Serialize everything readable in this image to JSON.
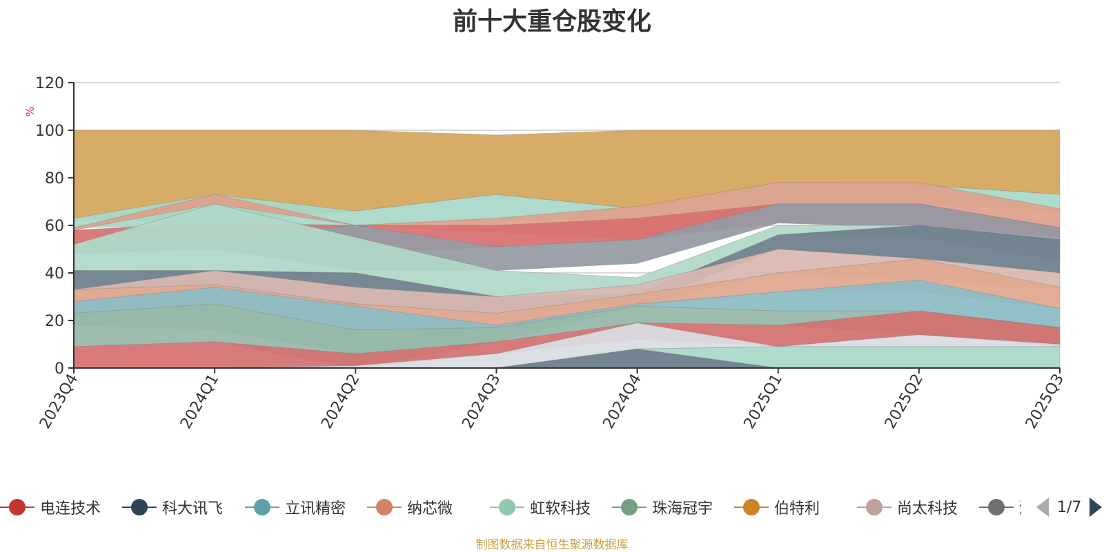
{
  "title": "前十大重仓股变化",
  "footer": "制图数据来自恒生聚源数据库",
  "chart_data": {
    "type": "area",
    "ylabel": "%",
    "ylim": [
      0,
      120
    ],
    "yticks": [
      0,
      20,
      40,
      60,
      80,
      100,
      120
    ],
    "categories": [
      "2023Q4",
      "2024Q1",
      "2024Q2",
      "2024Q3",
      "2024Q4",
      "2025Q1",
      "2025Q2",
      "2025Q3"
    ],
    "grid": true,
    "legend_position": "bottom",
    "bands": [
      {
        "color": "#d4a65a",
        "lower": [
          63,
          61,
          66,
          73,
          67,
          78,
          77,
          73
        ],
        "upper": [
          100,
          100,
          100,
          98,
          100,
          100,
          100,
          100
        ]
      },
      {
        "color": "#a8d8c8",
        "lower": [
          59,
          60,
          60,
          62,
          63,
          69,
          69,
          66
        ],
        "upper": [
          63,
          73,
          66,
          73,
          67,
          78,
          77,
          73
        ]
      },
      {
        "color": "#e0a08a",
        "lower": [
          58,
          69,
          60,
          57,
          54,
          69,
          69,
          59
        ],
        "upper": [
          59,
          73,
          60,
          63,
          68,
          78,
          78,
          67
        ]
      },
      {
        "color": "#d87070",
        "lower": [
          52,
          55,
          48,
          51,
          54,
          61,
          60,
          55
        ],
        "upper": [
          58,
          61,
          60,
          60,
          63,
          69,
          69,
          59
        ]
      },
      {
        "color": "#969aa4",
        "lower": [
          48,
          50,
          41,
          41,
          44,
          61,
          59,
          53
        ],
        "upper": [
          52,
          55,
          60,
          51,
          54,
          69,
          69,
          59
        ]
      },
      {
        "color": "#b0d8c8",
        "lower": [
          41,
          40,
          40,
          30,
          31,
          56,
          55,
          45
        ],
        "upper": [
          52,
          69,
          55,
          41,
          38,
          60,
          60,
          53
        ]
      },
      {
        "color": "#6e7e8c",
        "lower": [
          33,
          35,
          26,
          23,
          27,
          50,
          46,
          40
        ],
        "upper": [
          41,
          41,
          40,
          30,
          31,
          56,
          60,
          54
        ]
      },
      {
        "color": "#d8b8b0",
        "lower": [
          28,
          34,
          27,
          18,
          27,
          40,
          37,
          33
        ],
        "upper": [
          33,
          41,
          34,
          30,
          35,
          50,
          46,
          40
        ]
      },
      {
        "color": "#e0a890",
        "lower": [
          23,
          27,
          16,
          17,
          26,
          32,
          32,
          25
        ],
        "upper": [
          33,
          35,
          27,
          23,
          31,
          40,
          46,
          34
        ]
      },
      {
        "color": "#8cbcc4",
        "lower": [
          18,
          16,
          6,
          11,
          26,
          24,
          24,
          17
        ],
        "upper": [
          28,
          34,
          26,
          18,
          27,
          32,
          37,
          25
        ]
      },
      {
        "color": "#98b8a8",
        "lower": [
          9,
          11,
          0,
          11,
          19,
          18,
          14,
          10
        ],
        "upper": [
          23,
          27,
          16,
          17,
          26,
          24,
          24,
          17
        ]
      },
      {
        "color": "#d47070",
        "lower": [
          0,
          0,
          0,
          6,
          12,
          9,
          14,
          9
        ],
        "upper": [
          9,
          11,
          6,
          11,
          19,
          18,
          24,
          17
        ]
      },
      {
        "color": "#d9dde3",
        "lower": [
          0,
          0,
          0,
          0,
          8,
          9,
          9,
          9
        ],
        "upper": [
          0,
          0,
          1,
          6,
          19,
          9,
          14,
          10
        ]
      },
      {
        "color": "#a8d8c8",
        "lower": [
          0,
          0,
          0,
          0,
          0,
          0,
          0,
          0
        ],
        "upper": [
          0,
          0,
          0,
          0,
          8,
          9,
          9,
          9
        ]
      },
      {
        "color": "#6e7e8c",
        "lower": [
          0,
          0,
          0,
          0,
          0,
          0,
          0,
          0
        ],
        "upper": [
          0,
          0,
          0,
          0,
          8,
          0,
          0,
          0
        ]
      }
    ],
    "legend": [
      {
        "name": "电连技术",
        "color": "#c23531"
      },
      {
        "name": "科大讯飞",
        "color": "#2f4554"
      },
      {
        "name": "立讯精密",
        "color": "#61a0a8"
      },
      {
        "name": "纳芯微",
        "color": "#d48265"
      },
      {
        "name": "虹软科技",
        "color": "#91c7ae"
      },
      {
        "name": "珠海冠宇",
        "color": "#749f83"
      },
      {
        "name": "伯特利",
        "color": "#ca8622"
      },
      {
        "name": "尚太科技",
        "color": "#bda29a"
      },
      {
        "name": "浙江仙",
        "color": "#6e7074"
      }
    ]
  },
  "pager": {
    "text": "1/7"
  }
}
